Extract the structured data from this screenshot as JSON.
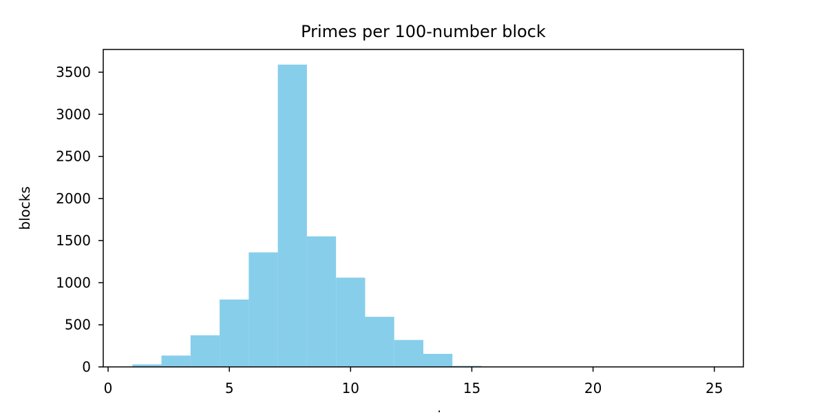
{
  "chart_data": {
    "type": "bar",
    "title": "Primes per 100-number block",
    "xlabel": "count",
    "ylabel": "blocks",
    "xlim": [
      -0.2,
      26.2
    ],
    "ylim": [
      0,
      3770
    ],
    "xticks": [
      0,
      5,
      10,
      15,
      20,
      25
    ],
    "yticks": [
      0,
      500,
      1000,
      1500,
      2000,
      2500,
      3000,
      3500
    ],
    "grid": false,
    "bar_color": "#87ceeb",
    "bin_edges": [
      1,
      2.2,
      3.4,
      4.6,
      5.8,
      7.0,
      8.2,
      9.4,
      10.6,
      11.8,
      13.0,
      14.2,
      15.4,
      16.6,
      17.8,
      19.0,
      20.2,
      21.4,
      22.6,
      23.8,
      25.0
    ],
    "values": [
      30,
      135,
      375,
      800,
      1360,
      3590,
      1550,
      1060,
      595,
      320,
      155,
      12,
      3,
      1,
      1,
      0,
      0,
      0,
      0,
      1
    ]
  }
}
